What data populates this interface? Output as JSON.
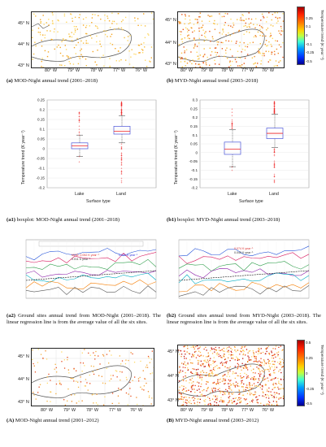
{
  "map_ticks": {
    "lat": [
      "45° N",
      "44° N",
      "43° N"
    ],
    "lon": [
      "80° W",
      "79° W",
      "78° W",
      "77° W",
      "76° W"
    ]
  },
  "colorbar": {
    "title": "Temperature trend (K year⁻¹)",
    "ticks": [
      "0.5",
      "0.25",
      "0",
      "-0.25",
      "-0.5"
    ],
    "ticks_top": [
      "0.25",
      "0.1",
      "0",
      "-0.1",
      "-0.25",
      "-0.5"
    ]
  },
  "captions": {
    "a": {
      "tag": "(a)",
      "text": " MOD-Night annual trend (2001–2018)"
    },
    "b": {
      "tag": "(b)",
      "text": " MYD-Night annual trend (2003–2018)"
    },
    "a1": {
      "tag": "(a1)",
      "text": " boxplot: MOD-Night annual trend (2001–2018)"
    },
    "b1": {
      "tag": "(b1)",
      "text": " boxplot: MYD-Night annual trend (2003–2018)"
    },
    "a2": {
      "tag": "(a2)",
      "text": " Ground sites annual trend from MOD-Night (2001–2018). The linear regression line is from the average value of all the six sites."
    },
    "b2": {
      "tag": "(b2)",
      "text": " Ground sites annual trend from MYD-Night (2003–2018). The linear regression line is from the average value of all the six sites."
    },
    "A": {
      "tag": "(A)",
      "text": " MOD-Night annual trend (2001–2012)"
    },
    "B": {
      "tag": "(B)",
      "text": " MYD-Night annual trend (2003–2012)"
    }
  },
  "boxplots": {
    "ylabel": "Temperature trend (K year⁻¹)",
    "xlabel": "Surface type",
    "a1": {
      "yticks": [
        "0.25",
        "0.2",
        "0.15",
        "0.1",
        "0.05",
        "0",
        "-0.05",
        "-0.1",
        "-0.15",
        "-0.2"
      ],
      "categories": [
        "Lake",
        "Land"
      ],
      "boxes": [
        {
          "q1": 0.0,
          "median": 0.015,
          "q3": 0.03,
          "whisker_low": -0.04,
          "whisker_high": 0.07
        },
        {
          "q1": 0.075,
          "median": 0.09,
          "q3": 0.115,
          "whisker_low": 0.03,
          "whisker_high": 0.17
        }
      ]
    },
    "b1": {
      "yticks": [
        "0.3",
        "0.25",
        "0.2",
        "0.15",
        "0.1",
        "0.05",
        "0",
        "-0.05",
        "-0.1",
        "-0.15",
        "-0.2"
      ],
      "categories": [
        "Lake",
        "Land"
      ],
      "boxes": [
        {
          "q1": -0.01,
          "median": 0.02,
          "q3": 0.06,
          "whisker_low": -0.08,
          "whisker_high": 0.13
        },
        {
          "q1": 0.08,
          "median": 0.11,
          "q3": 0.14,
          "whisker_low": 0.03,
          "whisker_high": 0.22
        }
      ]
    }
  },
  "ground_sites": {
    "a2": {
      "ann1": "MOD: 0.052 K year⁻¹",
      "ann2": "0.011 K year⁻¹",
      "ann3": "0.031 K year⁻¹"
    },
    "b2": {
      "ann1": "0.074 K year⁻¹",
      "ann2": "0.045 K year⁻¹"
    }
  }
}
